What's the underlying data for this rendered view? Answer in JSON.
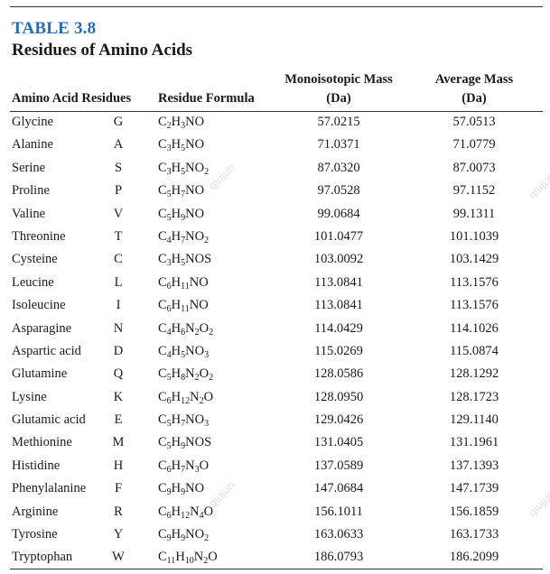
{
  "table": {
    "number": "TABLE 3.8",
    "title": "Residues of Amino Acids",
    "headers": {
      "name": "Amino Acid Residues",
      "formula": "Residue Formula",
      "mono_line1": "Monoisotopic Mass",
      "mono_line2": "(Da)",
      "avg_line1": "Average Mass",
      "avg_line2": "(Da)"
    },
    "rows": [
      {
        "name": "Glycine",
        "code": "G",
        "formula": [
          [
            "C",
            "2"
          ],
          [
            "H",
            "3"
          ],
          [
            "N",
            ""
          ],
          [
            "O",
            ""
          ]
        ],
        "mono": "57.0215",
        "avg": "57.0513"
      },
      {
        "name": "Alanine",
        "code": "A",
        "formula": [
          [
            "C",
            "3"
          ],
          [
            "H",
            "5"
          ],
          [
            "N",
            ""
          ],
          [
            "O",
            ""
          ]
        ],
        "mono": "71.0371",
        "avg": "71.0779"
      },
      {
        "name": "Serine",
        "code": "S",
        "formula": [
          [
            "C",
            "3"
          ],
          [
            "H",
            "5"
          ],
          [
            "N",
            ""
          ],
          [
            "O",
            "2"
          ]
        ],
        "mono": "87.0320",
        "avg": "87.0073"
      },
      {
        "name": "Proline",
        "code": "P",
        "formula": [
          [
            "C",
            "5"
          ],
          [
            "H",
            "7"
          ],
          [
            "N",
            ""
          ],
          [
            "O",
            ""
          ]
        ],
        "mono": "97.0528",
        "avg": "97.1152"
      },
      {
        "name": "Valine",
        "code": "V",
        "formula": [
          [
            "C",
            "5"
          ],
          [
            "H",
            "9"
          ],
          [
            "N",
            ""
          ],
          [
            "O",
            ""
          ]
        ],
        "mono": "99.0684",
        "avg": "99.1311"
      },
      {
        "name": "Threonine",
        "code": "T",
        "formula": [
          [
            "C",
            "4"
          ],
          [
            "H",
            "7"
          ],
          [
            "N",
            ""
          ],
          [
            "O",
            "2"
          ]
        ],
        "mono": "101.0477",
        "avg": "101.1039"
      },
      {
        "name": "Cysteine",
        "code": "C",
        "formula": [
          [
            "C",
            "3"
          ],
          [
            "H",
            "5"
          ],
          [
            "N",
            ""
          ],
          [
            "O",
            ""
          ],
          [
            "S",
            ""
          ]
        ],
        "mono": "103.0092",
        "avg": "103.1429"
      },
      {
        "name": "Leucine",
        "code": "L",
        "formula": [
          [
            "C",
            "6"
          ],
          [
            "H",
            "11"
          ],
          [
            "N",
            ""
          ],
          [
            "O",
            ""
          ]
        ],
        "mono": "113.0841",
        "avg": "113.1576"
      },
      {
        "name": "Isoleucine",
        "code": "I",
        "formula": [
          [
            "C",
            "6"
          ],
          [
            "H",
            "11"
          ],
          [
            "N",
            ""
          ],
          [
            "O",
            ""
          ]
        ],
        "mono": "113.0841",
        "avg": "113.1576"
      },
      {
        "name": "Asparagine",
        "code": "N",
        "formula": [
          [
            "C",
            "4"
          ],
          [
            "H",
            "6"
          ],
          [
            "N",
            "2"
          ],
          [
            "O",
            "2"
          ]
        ],
        "mono": "114.0429",
        "avg": "114.1026"
      },
      {
        "name": "Aspartic acid",
        "code": "D",
        "formula": [
          [
            "C",
            "4"
          ],
          [
            "H",
            "5"
          ],
          [
            "N",
            ""
          ],
          [
            "O",
            "3"
          ]
        ],
        "mono": "115.0269",
        "avg": "115.0874"
      },
      {
        "name": "Glutamine",
        "code": "Q",
        "formula": [
          [
            "C",
            "5"
          ],
          [
            "H",
            "8"
          ],
          [
            "N",
            "2"
          ],
          [
            "O",
            "2"
          ]
        ],
        "mono": "128.0586",
        "avg": "128.1292"
      },
      {
        "name": "Lysine",
        "code": "K",
        "formula": [
          [
            "C",
            "6"
          ],
          [
            "H",
            "12"
          ],
          [
            "N",
            "2"
          ],
          [
            "O",
            ""
          ]
        ],
        "mono": "128.0950",
        "avg": "128.1723"
      },
      {
        "name": "Glutamic acid",
        "code": "E",
        "formula": [
          [
            "C",
            "5"
          ],
          [
            "H",
            "7"
          ],
          [
            "N",
            ""
          ],
          [
            "O",
            "3"
          ]
        ],
        "mono": "129.0426",
        "avg": "129.1140"
      },
      {
        "name": "Methionine",
        "code": "M",
        "formula": [
          [
            "C",
            "5"
          ],
          [
            "H",
            "9"
          ],
          [
            "N",
            ""
          ],
          [
            "O",
            ""
          ],
          [
            "S",
            ""
          ]
        ],
        "mono": "131.0405",
        "avg": "131.1961"
      },
      {
        "name": "Histidine",
        "code": "H",
        "formula": [
          [
            "C",
            "6"
          ],
          [
            "H",
            "7"
          ],
          [
            "N",
            "3"
          ],
          [
            "O",
            ""
          ]
        ],
        "mono": "137.0589",
        "avg": "137.1393"
      },
      {
        "name": "Phenylalanine",
        "code": "F",
        "formula": [
          [
            "C",
            "9"
          ],
          [
            "H",
            "9"
          ],
          [
            "N",
            ""
          ],
          [
            "O",
            ""
          ]
        ],
        "mono": "147.0684",
        "avg": "147.1739"
      },
      {
        "name": "Arginine",
        "code": "R",
        "formula": [
          [
            "C",
            "6"
          ],
          [
            "H",
            "12"
          ],
          [
            "N",
            "4"
          ],
          [
            "O",
            ""
          ]
        ],
        "mono": "156.1011",
        "avg": "156.1859"
      },
      {
        "name": "Tyrosine",
        "code": "Y",
        "formula": [
          [
            "C",
            "9"
          ],
          [
            "H",
            "9"
          ],
          [
            "N",
            ""
          ],
          [
            "O",
            "2"
          ]
        ],
        "mono": "163.0633",
        "avg": "163.1733"
      },
      {
        "name": "Tryptophan",
        "code": "W",
        "formula": [
          [
            "C",
            "11"
          ],
          [
            "H",
            "10"
          ],
          [
            "N",
            "2"
          ],
          [
            "O",
            ""
          ]
        ],
        "mono": "186.0793",
        "avg": "186.2099"
      }
    ]
  },
  "watermark": "qiujun",
  "colors": {
    "table_number": "#2a6bb5",
    "text": "#1a1a1a"
  }
}
